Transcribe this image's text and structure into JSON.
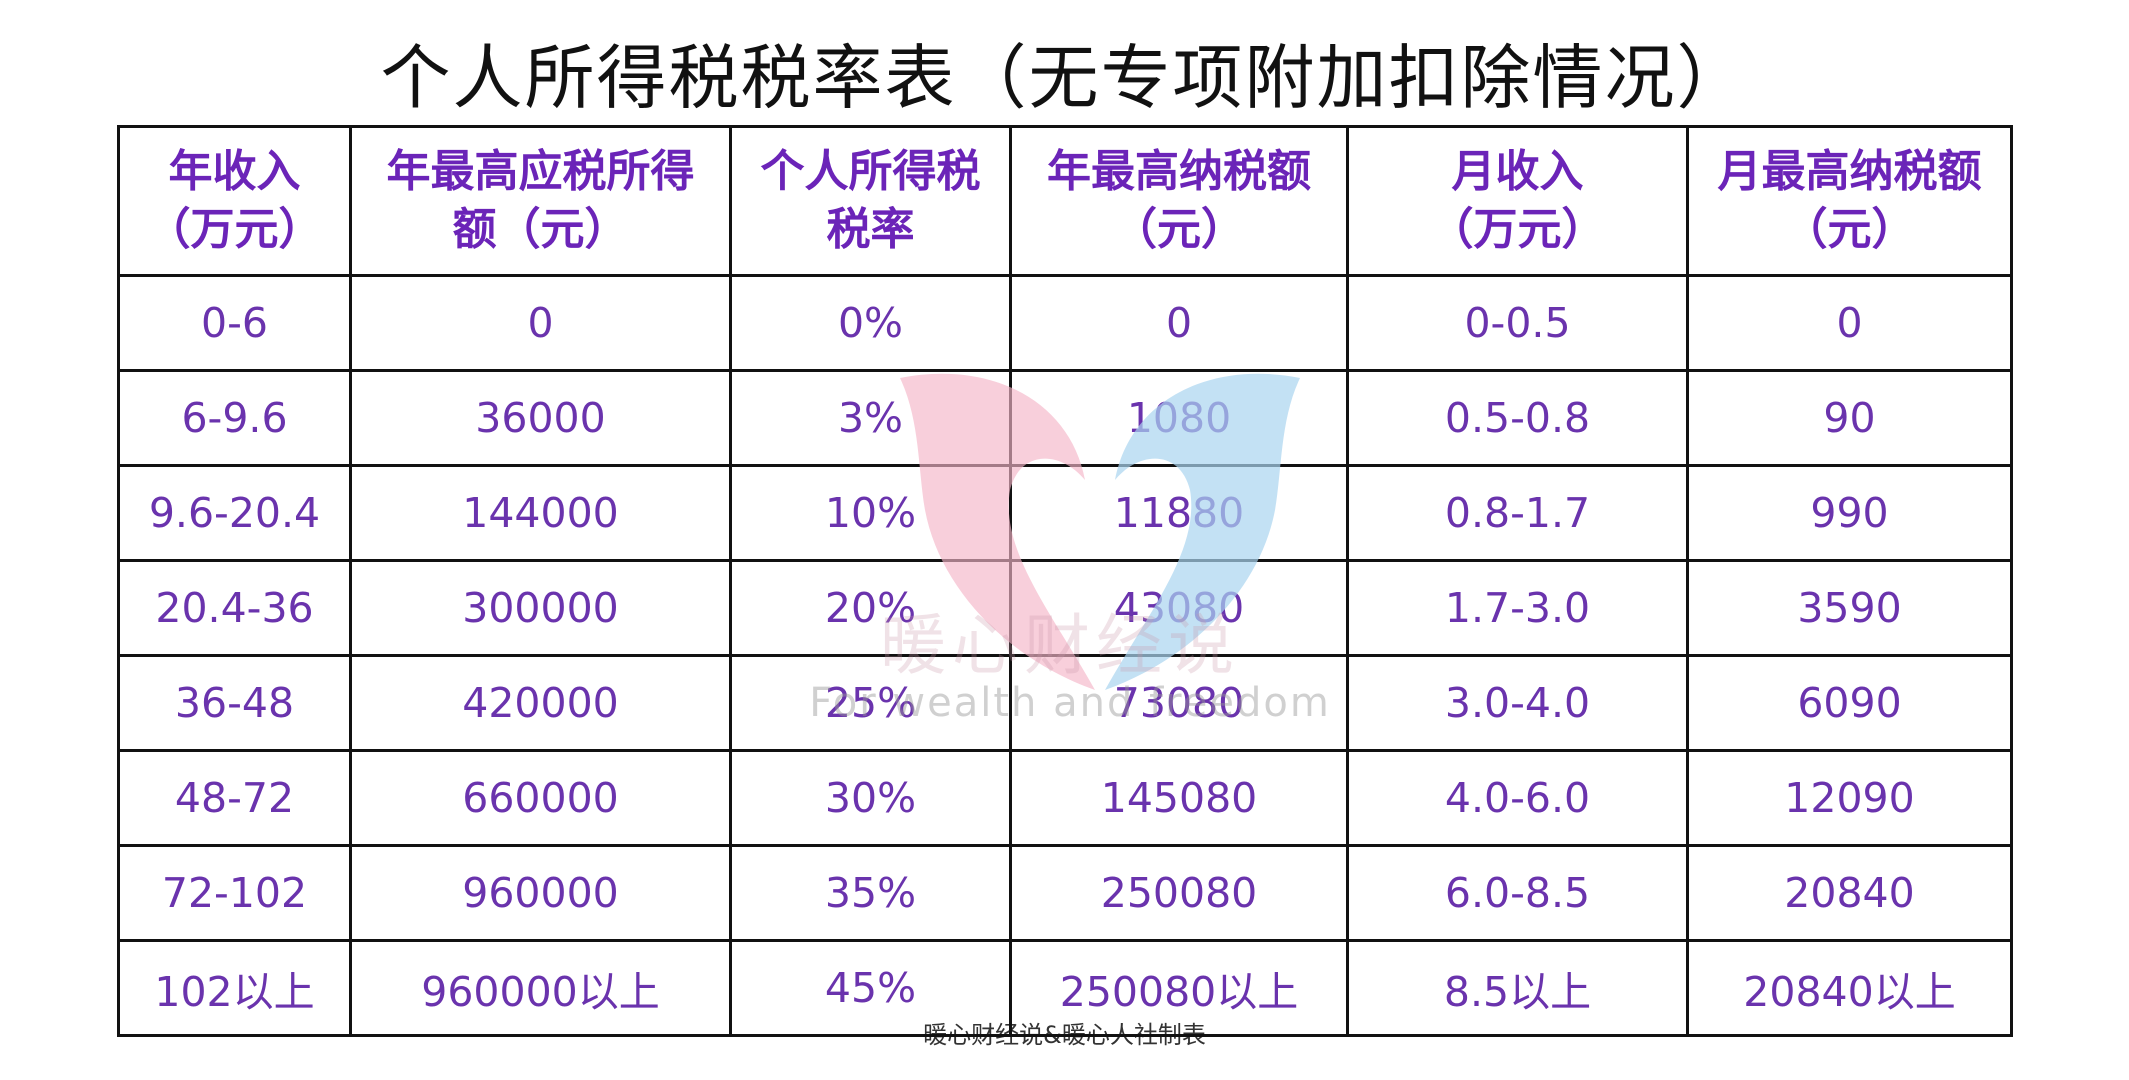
{
  "title": "个人所得税税率表（无专项附加扣除情况）",
  "table": {
    "headers": [
      [
        "年收入",
        "（万元）"
      ],
      [
        "年最高应税所得",
        "额（元）"
      ],
      [
        "个人所得税",
        "税率"
      ],
      [
        "年最高纳税额",
        "（元）"
      ],
      [
        "月收入",
        "（万元）"
      ],
      [
        "月最高纳税额",
        "（元）"
      ]
    ],
    "rows": [
      [
        "0-6",
        "0",
        "0%",
        "0",
        "0-0.5",
        "0"
      ],
      [
        "6-9.6",
        "36000",
        "3%",
        "1080",
        "0.5-0.8",
        "90"
      ],
      [
        "9.6-20.4",
        "144000",
        "10%",
        "11880",
        "0.8-1.7",
        "990"
      ],
      [
        "20.4-36",
        "300000",
        "20%",
        "43080",
        "1.7-3.0",
        "3590"
      ],
      [
        "36-48",
        "420000",
        "25%",
        "73080",
        "3.0-4.0",
        "6090"
      ],
      [
        "48-72",
        "660000",
        "30%",
        "145080",
        "4.0-6.0",
        "12090"
      ],
      [
        "72-102",
        "960000",
        "35%",
        "250080",
        "6.0-8.5",
        "20840"
      ],
      [
        "102以上",
        "960000以上",
        "45%",
        "250080以上",
        "8.5以上",
        "20840以上"
      ]
    ]
  },
  "watermark": {
    "logo": "heart-logo",
    "text_cn": "暖心财经说",
    "text_en": "For wealth and freedom"
  },
  "footer": "暖心财经说&暖心人社制表",
  "colors": {
    "header_text": "#6b24b8",
    "cell_text": "#6a33ad",
    "border": "#111111",
    "logo_pink": "#f4b6c8",
    "logo_blue": "#a9d4f0"
  }
}
